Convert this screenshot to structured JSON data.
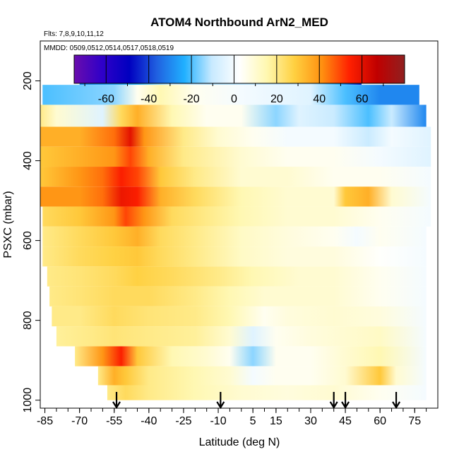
{
  "chart_data": {
    "type": "heatmap",
    "title": "ATOM4 Northbound ArN2_MED",
    "flights_label": "Flts: 7,8,9,10,11,12",
    "dates_label": "MMDD: 0509,0512,0514,0517,0518,0519",
    "xlabel": "Latitude (deg N)",
    "ylabel": "PSXC (mbar)",
    "x_ticks": [
      -85,
      -70,
      -55,
      -40,
      -25,
      -10,
      5,
      15,
      30,
      45,
      60,
      75
    ],
    "xlim": [
      -87,
      85
    ],
    "y_ticks": [
      200,
      400,
      600,
      800,
      1000
    ],
    "ylim": [
      1020,
      100
    ],
    "colorbar": {
      "ticks": [
        -60,
        -40,
        -20,
        0,
        20,
        40,
        60
      ],
      "range": [
        -75,
        80
      ],
      "colors": [
        "#6a0dad",
        "#3000c8",
        "#0000c0",
        "#2060e0",
        "#20b0ff",
        "#c8eaff",
        "#ffffff",
        "#fff8b0",
        "#ffd040",
        "#ff9010",
        "#ff2000",
        "#c00000",
        "#902020"
      ]
    },
    "arrow_latitudes": [
      -54,
      -9,
      40,
      45,
      67
    ],
    "layers": [
      {
        "p": 190,
        "start": -70,
        "end": 52,
        "points": [
          [
            -70,
            -30
          ],
          [
            -45,
            -22
          ],
          [
            -30,
            -10
          ],
          [
            -10,
            -12
          ],
          [
            30,
            -10
          ],
          [
            42,
            -22
          ],
          [
            52,
            -45
          ]
        ]
      },
      {
        "p": 230,
        "start": -86,
        "end": 77,
        "points": [
          [
            -86,
            -20
          ],
          [
            -55,
            -15
          ],
          [
            -45,
            5
          ],
          [
            -35,
            15
          ],
          [
            -20,
            5
          ],
          [
            0,
            0
          ],
          [
            30,
            -5
          ],
          [
            45,
            -20
          ],
          [
            60,
            -30
          ],
          [
            77,
            -30
          ]
        ]
      },
      {
        "p": 290,
        "start": -87,
        "end": 80,
        "points": [
          [
            -87,
            20
          ],
          [
            -80,
            10
          ],
          [
            -60,
            -5
          ],
          [
            -52,
            25
          ],
          [
            -45,
            35
          ],
          [
            -30,
            15
          ],
          [
            -15,
            5
          ],
          [
            0,
            5
          ],
          [
            15,
            -15
          ],
          [
            25,
            -5
          ],
          [
            40,
            -10
          ],
          [
            55,
            -20
          ],
          [
            65,
            -10
          ],
          [
            80,
            -30
          ]
        ]
      },
      {
        "p": 340,
        "start": -87,
        "end": 82,
        "points": [
          [
            -87,
            35
          ],
          [
            -70,
            35
          ],
          [
            -55,
            45
          ],
          [
            -48,
            60
          ],
          [
            -42,
            40
          ],
          [
            -25,
            20
          ],
          [
            -10,
            10
          ],
          [
            5,
            5
          ],
          [
            20,
            0
          ],
          [
            40,
            0
          ],
          [
            55,
            -10
          ],
          [
            65,
            0
          ],
          [
            82,
            -5
          ]
        ]
      },
      {
        "p": 390,
        "start": -87,
        "end": 82,
        "points": [
          [
            -87,
            30
          ],
          [
            -70,
            35
          ],
          [
            -55,
            40
          ],
          [
            -48,
            50
          ],
          [
            -40,
            35
          ],
          [
            -25,
            20
          ],
          [
            0,
            10
          ],
          [
            20,
            5
          ],
          [
            40,
            5
          ],
          [
            60,
            0
          ],
          [
            82,
            -5
          ]
        ]
      },
      {
        "p": 440,
        "start": -87,
        "end": 82,
        "points": [
          [
            -87,
            30
          ],
          [
            -70,
            40
          ],
          [
            -60,
            45
          ],
          [
            -52,
            55
          ],
          [
            -45,
            50
          ],
          [
            -35,
            30
          ],
          [
            -20,
            20
          ],
          [
            0,
            10
          ],
          [
            20,
            10
          ],
          [
            40,
            5
          ],
          [
            60,
            5
          ],
          [
            82,
            0
          ]
        ]
      },
      {
        "p": 490,
        "start": -87,
        "end": 82,
        "points": [
          [
            -87,
            40
          ],
          [
            -70,
            40
          ],
          [
            -60,
            45
          ],
          [
            -52,
            58
          ],
          [
            -45,
            55
          ],
          [
            -35,
            35
          ],
          [
            -20,
            25
          ],
          [
            0,
            15
          ],
          [
            20,
            10
          ],
          [
            40,
            10
          ],
          [
            45,
            30
          ],
          [
            55,
            35
          ],
          [
            65,
            10
          ],
          [
            82,
            0
          ]
        ]
      },
      {
        "p": 540,
        "start": -86,
        "end": 82,
        "points": [
          [
            -86,
            25
          ],
          [
            -70,
            30
          ],
          [
            -55,
            40
          ],
          [
            -50,
            50
          ],
          [
            -42,
            40
          ],
          [
            -30,
            25
          ],
          [
            -15,
            20
          ],
          [
            0,
            15
          ],
          [
            20,
            10
          ],
          [
            40,
            10
          ],
          [
            60,
            5
          ],
          [
            82,
            0
          ]
        ]
      },
      {
        "p": 590,
        "start": -86,
        "end": 80,
        "points": [
          [
            -86,
            20
          ],
          [
            -70,
            25
          ],
          [
            -55,
            30
          ],
          [
            -45,
            35
          ],
          [
            -35,
            25
          ],
          [
            -20,
            20
          ],
          [
            0,
            12
          ],
          [
            20,
            8
          ],
          [
            40,
            5
          ],
          [
            50,
            0
          ],
          [
            60,
            5
          ],
          [
            80,
            0
          ]
        ]
      },
      {
        "p": 640,
        "start": -86,
        "end": 80,
        "points": [
          [
            -86,
            20
          ],
          [
            -70,
            25
          ],
          [
            -55,
            28
          ],
          [
            -45,
            30
          ],
          [
            -35,
            25
          ],
          [
            -20,
            20
          ],
          [
            0,
            12
          ],
          [
            20,
            8
          ],
          [
            40,
            8
          ],
          [
            60,
            3
          ],
          [
            80,
            0
          ]
        ]
      },
      {
        "p": 690,
        "start": -84,
        "end": 80,
        "points": [
          [
            -84,
            20
          ],
          [
            -70,
            22
          ],
          [
            -55,
            25
          ],
          [
            -45,
            28
          ],
          [
            -30,
            25
          ],
          [
            -10,
            20
          ],
          [
            5,
            15
          ],
          [
            25,
            10
          ],
          [
            40,
            10
          ],
          [
            60,
            5
          ],
          [
            80,
            0
          ]
        ]
      },
      {
        "p": 740,
        "start": -83,
        "end": 80,
        "points": [
          [
            -83,
            20
          ],
          [
            -70,
            22
          ],
          [
            -55,
            25
          ],
          [
            -40,
            25
          ],
          [
            -20,
            20
          ],
          [
            -5,
            15
          ],
          [
            10,
            10
          ],
          [
            25,
            10
          ],
          [
            40,
            10
          ],
          [
            60,
            5
          ],
          [
            80,
            0
          ]
        ]
      },
      {
        "p": 790,
        "start": -82,
        "end": 80,
        "points": [
          [
            -82,
            20
          ],
          [
            -70,
            20
          ],
          [
            -55,
            25
          ],
          [
            -40,
            22
          ],
          [
            -20,
            20
          ],
          [
            -5,
            15
          ],
          [
            10,
            5
          ],
          [
            20,
            8
          ],
          [
            40,
            10
          ],
          [
            60,
            8
          ],
          [
            80,
            0
          ]
        ]
      },
      {
        "p": 840,
        "start": -80,
        "end": 80,
        "points": [
          [
            -80,
            18
          ],
          [
            -65,
            20
          ],
          [
            -55,
            22
          ],
          [
            -40,
            20
          ],
          [
            -20,
            18
          ],
          [
            -5,
            10
          ],
          [
            5,
            -5
          ],
          [
            15,
            5
          ],
          [
            30,
            8
          ],
          [
            45,
            10
          ],
          [
            60,
            12
          ],
          [
            80,
            0
          ]
        ]
      },
      {
        "p": 890,
        "start": -72,
        "end": 80,
        "points": [
          [
            -72,
            20
          ],
          [
            -60,
            40
          ],
          [
            -52,
            55
          ],
          [
            -45,
            30
          ],
          [
            -30,
            15
          ],
          [
            -15,
            10
          ],
          [
            -5,
            5
          ],
          [
            5,
            -15
          ],
          [
            15,
            5
          ],
          [
            30,
            5
          ],
          [
            45,
            10
          ],
          [
            60,
            15
          ],
          [
            80,
            0
          ]
        ]
      },
      {
        "p": 940,
        "start": -62,
        "end": 80,
        "points": [
          [
            -62,
            20
          ],
          [
            -55,
            35
          ],
          [
            -50,
            30
          ],
          [
            -40,
            20
          ],
          [
            -20,
            15
          ],
          [
            -5,
            10
          ],
          [
            5,
            0
          ],
          [
            15,
            5
          ],
          [
            30,
            5
          ],
          [
            45,
            10
          ],
          [
            60,
            30
          ],
          [
            67,
            10
          ],
          [
            80,
            0
          ]
        ]
      },
      {
        "p": 985,
        "start": -58,
        "end": 80,
        "points": [
          [
            -58,
            20
          ],
          [
            -50,
            25
          ],
          [
            -40,
            20
          ],
          [
            -20,
            15
          ],
          [
            0,
            10
          ],
          [
            20,
            8
          ],
          [
            40,
            10
          ],
          [
            60,
            5
          ],
          [
            80,
            0
          ]
        ]
      }
    ]
  }
}
